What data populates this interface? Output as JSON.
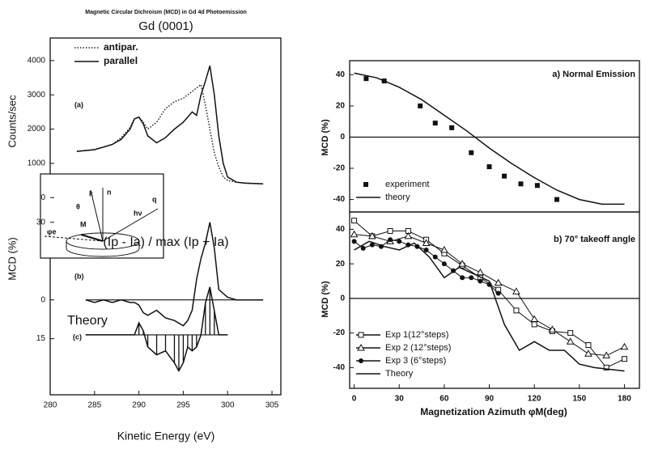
{
  "chart_data": [
    {
      "type": "line",
      "title": "Magnetic Circular Dichroism (MCD) in Gd 4d Photoemission",
      "subtitle": "Gd (0001)",
      "ylabel": "Counts/sec",
      "panel_label": "(a)",
      "x": [
        283,
        285,
        287,
        288,
        289,
        289.5,
        290,
        290.5,
        291,
        292,
        293,
        294,
        295,
        296,
        296.5,
        297,
        297.5,
        298,
        298.5,
        299,
        299.5,
        300,
        301,
        302,
        304
      ],
      "xlim": [
        280,
        306
      ],
      "ylim": [
        -420,
        4660
      ],
      "yticks": [
        0,
        1000,
        2000,
        3000,
        4000
      ],
      "legend": "upper left",
      "series": [
        {
          "name": "antipar.",
          "color": "#222222",
          "dash": "dotted",
          "values": [
            1350,
            1400,
            1550,
            1750,
            2050,
            2300,
            2350,
            2200,
            2000,
            2200,
            2600,
            2800,
            2900,
            3100,
            3200,
            3300,
            2700,
            2000,
            1300,
            900,
            600,
            500,
            450,
            420,
            400
          ]
        },
        {
          "name": "parallel",
          "color": "#111111",
          "values": [
            1350,
            1400,
            1550,
            1700,
            2000,
            2300,
            2350,
            2150,
            1800,
            1600,
            1750,
            2000,
            2200,
            2500,
            2400,
            3000,
            3400,
            3850,
            3000,
            1800,
            1000,
            600,
            450,
            420,
            400
          ]
        }
      ],
      "inset_labels": [
        "k",
        "n",
        "q",
        "hν",
        "θ",
        "φe",
        "M"
      ]
    },
    {
      "type": "line",
      "ylabel": "MCD (%)",
      "panel_label": "(b)",
      "annotation": "(Ip - Ia) / max (Ip + Ia)",
      "x": [
        284,
        285,
        286,
        287,
        288,
        289,
        289.5,
        290,
        290.5,
        291,
        292,
        293,
        294,
        295,
        295.5,
        296,
        296.5,
        297,
        297.5,
        298,
        298.5,
        299,
        300,
        301,
        302,
        304
      ],
      "xlim": [
        280,
        306
      ],
      "ylim": [
        -17,
        34
      ],
      "yticks": [
        30,
        0,
        {
          "value": -15,
          "label": "15"
        }
      ],
      "zero_line": true,
      "series": [
        {
          "color": "#111111",
          "values": [
            0,
            -1,
            0,
            -1,
            0,
            -1,
            -1,
            -2,
            -5,
            -6,
            -4,
            -7,
            -8,
            -10,
            -8,
            -4,
            8,
            16,
            22,
            30,
            20,
            4,
            1,
            0,
            0,
            0
          ]
        }
      ]
    },
    {
      "type": "line",
      "label": "Theory",
      "panel_label": "(c)",
      "xlabel": "Kinetic Energy (eV)",
      "x": [
        284,
        289.5,
        290,
        290.5,
        291,
        292,
        293,
        294,
        294.5,
        295,
        295.5,
        296,
        296.5,
        297,
        297.5,
        298,
        298.5,
        299,
        300
      ],
      "xlim": [
        280,
        306
      ],
      "ylim": [
        -15,
        17
      ],
      "xticks": [
        280,
        285,
        290,
        295,
        300,
        305
      ],
      "zero_line": true,
      "sticks": true,
      "series": [
        {
          "color": "#111111",
          "values": [
            0,
            0,
            3,
            1,
            -3,
            -5,
            -4,
            -7,
            -9,
            -7,
            -3,
            -4,
            -3,
            0,
            8,
            12,
            6,
            0,
            0
          ]
        }
      ]
    },
    {
      "type": "scatter",
      "title": "a) Normal Emission",
      "ylabel": "MCD (%)",
      "xlim": [
        -3,
        190
      ],
      "ylim": [
        -48,
        49
      ],
      "yticks": [
        -40,
        -20,
        0,
        20,
        40
      ],
      "zero_line": true,
      "legend": "lower left",
      "series": [
        {
          "name": "experiment",
          "color": "#111111",
          "marker": "square",
          "x": [
            8,
            20,
            44,
            54,
            65,
            78,
            90,
            100,
            111,
            122,
            135
          ],
          "values": [
            37.5,
            36,
            20,
            9,
            6,
            -10,
            -19,
            -25,
            -30,
            -31,
            -40
          ]
        },
        {
          "name": "theory",
          "color": "#111111",
          "x": [
            0,
            15,
            30,
            45,
            60,
            75,
            90,
            105,
            120,
            135,
            150,
            165,
            180
          ],
          "values": [
            41,
            38,
            32,
            24,
            14,
            4,
            -7,
            -17,
            -26,
            -34,
            -40,
            -43,
            -43
          ]
        }
      ]
    },
    {
      "type": "scatter",
      "title": "b) 70° takeoff angle",
      "ylabel": "MCD (%)",
      "xlabel": "Magnetization Azimuth φM(deg)",
      "xlim": [
        -3,
        190
      ],
      "ylim": [
        -52,
        50
      ],
      "yticks": [
        -40,
        -20,
        0,
        20,
        40
      ],
      "xticks": [
        0,
        30,
        60,
        90,
        120,
        150,
        180
      ],
      "zero_line": true,
      "legend": "lower left",
      "series": [
        {
          "name": "Exp 1(12°steps)",
          "color": "#111111",
          "marker": "square-open",
          "x": [
            0,
            12,
            24,
            36,
            48,
            60,
            72,
            84,
            96,
            108,
            120,
            132,
            144,
            156,
            168,
            180
          ],
          "values": [
            45,
            36,
            39,
            39,
            34,
            26,
            19,
            12,
            5,
            -7,
            -15,
            -19,
            -20,
            -27,
            -40,
            -35
          ]
        },
        {
          "name": "Exp 2 (12°steps)",
          "color": "#111111",
          "marker": "triangle-open",
          "x": [
            0,
            12,
            24,
            36,
            48,
            60,
            72,
            84,
            96,
            108,
            120,
            132,
            144,
            156,
            168,
            180
          ],
          "values": [
            37,
            36,
            33,
            36,
            32,
            28,
            20,
            15,
            9,
            4,
            -12,
            -18,
            -25,
            -32,
            -33,
            -28
          ]
        },
        {
          "name": "Exp 3 (6°steps)",
          "color": "#111111",
          "marker": "circle",
          "x": [
            0,
            6,
            12,
            18,
            24,
            30,
            36,
            42,
            48,
            54,
            60,
            66,
            72,
            78,
            84,
            90,
            96
          ],
          "values": [
            33,
            29,
            31,
            30,
            34,
            33,
            31,
            30,
            28,
            24,
            20,
            16,
            12,
            12,
            10,
            8,
            3
          ]
        },
        {
          "name": "Theory",
          "color": "#111111",
          "x": [
            0,
            10,
            20,
            30,
            40,
            50,
            60,
            70,
            80,
            90,
            100,
            110,
            120,
            130,
            140,
            150,
            160,
            170,
            180
          ],
          "values": [
            28,
            33,
            30,
            28,
            32,
            24,
            12,
            18,
            14,
            10,
            -15,
            -30,
            -25,
            -30,
            -30,
            -38,
            -40,
            -41,
            -42
          ]
        }
      ]
    }
  ]
}
